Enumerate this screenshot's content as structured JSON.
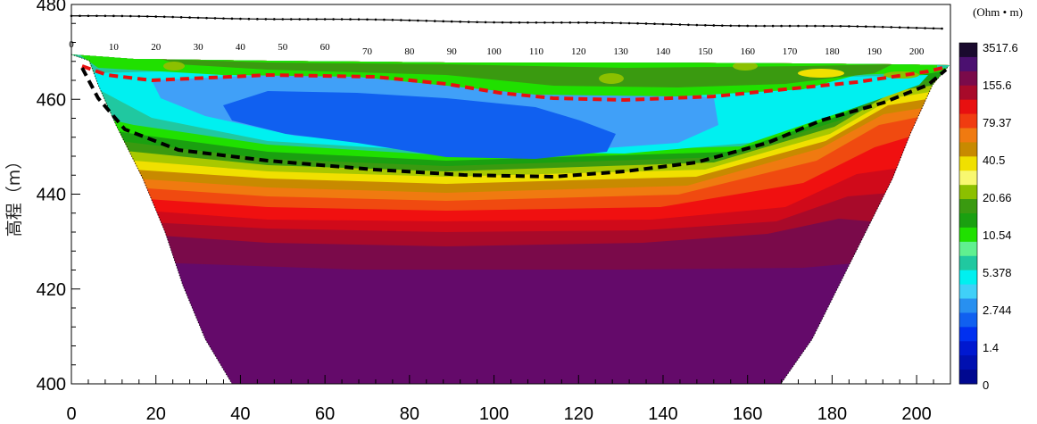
{
  "chart_data": {
    "type": "contour",
    "xlim": [
      0,
      208
    ],
    "ylim": [
      400,
      480
    ],
    "x_ticks": [
      0,
      20,
      40,
      60,
      80,
      100,
      120,
      140,
      160,
      180,
      200
    ],
    "y_ticks": [
      400,
      420,
      440,
      460,
      480
    ],
    "ylabel": "高程（m）",
    "distance_marks": [
      0,
      10,
      20,
      30,
      40,
      50,
      60,
      70,
      80,
      90,
      100,
      110,
      120,
      130,
      140,
      150,
      160,
      170,
      180,
      190,
      200
    ],
    "colorbar": {
      "unit": "(Ohm • m)",
      "labels": [
        "3517.6",
        "155.6",
        "79.37",
        "40.5",
        "20.66",
        "10.54",
        "5.378",
        "2.744",
        "1.4",
        "0"
      ],
      "colors": [
        "#1a0a2e",
        "#4b1070",
        "#7a0a4a",
        "#a80a2a",
        "#e81010",
        "#f03c10",
        "#f07a10",
        "#c88a00",
        "#f0e000",
        "#f8f870",
        "#8cc000",
        "#3a9a10",
        "#1aa010",
        "#20e000",
        "#60f090",
        "#20c8a0",
        "#00f0f0",
        "#40d0f8",
        "#2890f0",
        "#1060f0",
        "#0030f0",
        "#0018d0",
        "#0010b0",
        "#000890"
      ]
    }
  }
}
